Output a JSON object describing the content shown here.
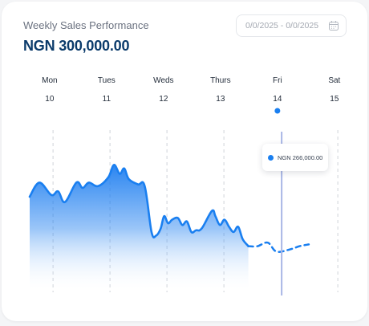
{
  "card": {
    "title": "Weekly Sales Performance",
    "total": "NGN 300,000.00"
  },
  "date_range": {
    "value": "0/0/2025 - 0/0/2025",
    "icon": "calendar-icon"
  },
  "tooltip": {
    "text": "NGN 266,000.00"
  },
  "colors": {
    "line": "#1a7ff0",
    "area_top": "#1f7ff0",
    "cursor": "#a8b6e6",
    "grid": "#cfd3d9",
    "title": "#0b3b6b"
  },
  "chart_data": {
    "type": "area",
    "days": [
      {
        "name": "Mon",
        "num": "10"
      },
      {
        "name": "Tues",
        "num": "11"
      },
      {
        "name": "Weds",
        "num": "12"
      },
      {
        "name": "Thurs",
        "num": "13"
      },
      {
        "name": "Fri",
        "num": "14"
      },
      {
        "name": "Sat",
        "num": "15"
      }
    ],
    "selected_day": "Fri",
    "ylim": [
      0,
      100
    ],
    "series": [
      {
        "values": [
          [
            0.0,
            55
          ],
          [
            0.17,
            63
          ],
          [
            0.38,
            56
          ],
          [
            0.5,
            58
          ],
          [
            0.62,
            52
          ],
          [
            0.82,
            63
          ],
          [
            0.93,
            60
          ],
          [
            1.04,
            63
          ],
          [
            1.2,
            61
          ],
          [
            1.38,
            66
          ],
          [
            1.48,
            73
          ],
          [
            1.58,
            68
          ],
          [
            1.66,
            71
          ],
          [
            1.74,
            65
          ],
          [
            1.9,
            62
          ],
          [
            2.02,
            61
          ],
          [
            2.14,
            35
          ],
          [
            2.22,
            33
          ],
          [
            2.3,
            37
          ],
          [
            2.36,
            44
          ],
          [
            2.43,
            40
          ],
          [
            2.5,
            42
          ],
          [
            2.6,
            43
          ],
          [
            2.68,
            39
          ],
          [
            2.76,
            41
          ],
          [
            2.84,
            35
          ],
          [
            2.92,
            36
          ],
          [
            3.02,
            37
          ],
          [
            3.2,
            47
          ],
          [
            3.26,
            44
          ],
          [
            3.34,
            39
          ],
          [
            3.42,
            42
          ],
          [
            3.5,
            38
          ],
          [
            3.58,
            35
          ],
          [
            3.66,
            38
          ],
          [
            3.74,
            31
          ],
          [
            3.84,
            27
          ]
        ]
      },
      {
        "style": "dashed",
        "values": [
          [
            3.84,
            27
          ],
          [
            4.0,
            27
          ],
          [
            4.18,
            29
          ],
          [
            4.33,
            24
          ],
          [
            4.55,
            25
          ],
          [
            4.74,
            27
          ],
          [
            4.9,
            28
          ]
        ]
      }
    ]
  }
}
